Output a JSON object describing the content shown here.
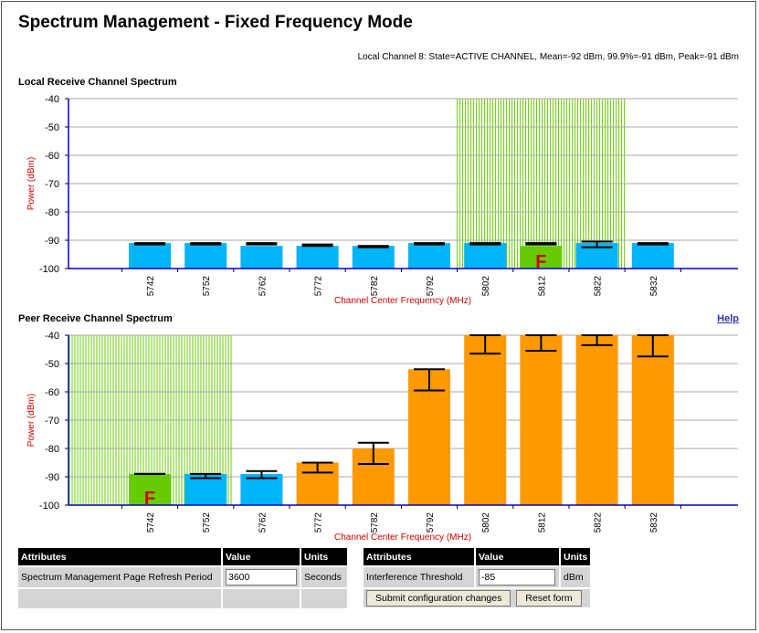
{
  "page": {
    "title": "Spectrum Management - Fixed Frequency Mode",
    "status_line": "Local Channel 8: State=ACTIVE CHANNEL, Mean=-92 dBm, 99.9%=-91 dBm, Peak=-91 dBm",
    "help_link": "Help"
  },
  "local_chart": {
    "heading": "Local Receive Channel Spectrum"
  },
  "peer_chart": {
    "heading": "Peer Receive Channel Spectrum"
  },
  "chart_data": [
    {
      "type": "bar",
      "title": "Local Receive Channel Spectrum",
      "xlabel": "Channel Center Frequency (MHz)",
      "ylabel": "Power (dBm)",
      "ylim": [
        -100,
        -40
      ],
      "yticks": [
        "-40",
        "-50",
        "-60",
        "-70",
        "-80",
        "-90",
        "-100"
      ],
      "categories": [
        "5742",
        "5752",
        "5762",
        "5772",
        "5782",
        "5792",
        "5802",
        "5812",
        "5822",
        "5832"
      ],
      "mean": [
        -91,
        -91,
        -92,
        -92,
        -92,
        -91,
        -91,
        -92,
        -91,
        -91
      ],
      "peak": [
        -91,
        -91,
        -91,
        -91.5,
        -92,
        -91,
        -91,
        -91,
        -90.5,
        -91
      ],
      "p999": [
        -91.5,
        -91.5,
        -91.5,
        -92,
        -92.5,
        -91.5,
        -91.5,
        -91.5,
        -92.5,
        -91.5
      ],
      "bar_colors": [
        "#00b4f8",
        "#00b4f8",
        "#00b4f8",
        "#00b4f8",
        "#00b4f8",
        "#00b4f8",
        "#00b4f8",
        "#66cc00",
        "#00b4f8",
        "#00b4f8"
      ],
      "marker": {
        "channel": "5812",
        "label": "F",
        "color": "#cc0000"
      },
      "hatch_range": [
        "5802",
        "5822"
      ],
      "hatch_color": "#66cc00"
    },
    {
      "type": "bar",
      "title": "Peer Receive Channel Spectrum",
      "xlabel": "Channel Center Frequency (MHz)",
      "ylabel": "Power (dBm)",
      "ylim": [
        -100,
        -40
      ],
      "yticks": [
        "-40",
        "-50",
        "-60",
        "-70",
        "-80",
        "-90",
        "-100"
      ],
      "categories": [
        "5742",
        "5752",
        "5762",
        "5772",
        "5782",
        "5792",
        "5802",
        "5812",
        "5822",
        "5832"
      ],
      "mean": [
        -89,
        -89,
        -89,
        -85,
        -80,
        -52,
        -40,
        -40,
        -40,
        -40
      ],
      "peak": [
        -89,
        -89,
        -88,
        -85,
        -78,
        -52,
        -40,
        -40,
        -40,
        -40
      ],
      "p999": [
        -89,
        -90.5,
        -90.5,
        -88.5,
        -85.5,
        -59.5,
        -46.5,
        -45.5,
        -43.5,
        -47.5
      ],
      "bar_colors": [
        "#66cc00",
        "#00b4f8",
        "#00b4f8",
        "#ff9900",
        "#ff9900",
        "#ff9900",
        "#ff9900",
        "#ff9900",
        "#ff9900",
        "#ff9900"
      ],
      "marker": {
        "channel": "5742",
        "label": "F",
        "color": "#cc0000"
      },
      "hatch_range": [
        "5732",
        "5752"
      ],
      "hatch_color": "#66cc00"
    }
  ],
  "left_table": {
    "headers": [
      "Attributes",
      "Value",
      "Units"
    ],
    "row_label": "Spectrum Management Page Refresh Period",
    "row_value": "3600",
    "row_units": "Seconds"
  },
  "right_table": {
    "headers": [
      "Attributes",
      "Value",
      "Units"
    ],
    "row_label": "Interference Threshold",
    "row_value": "-85",
    "row_units": "dBm",
    "submit_label": "Submit configuration changes",
    "reset_label": "Reset form"
  },
  "colors": {
    "axis": "#0000cc",
    "grid": "#aaaaaa",
    "axis_label": "#cc0000",
    "title_text": "#000000"
  }
}
